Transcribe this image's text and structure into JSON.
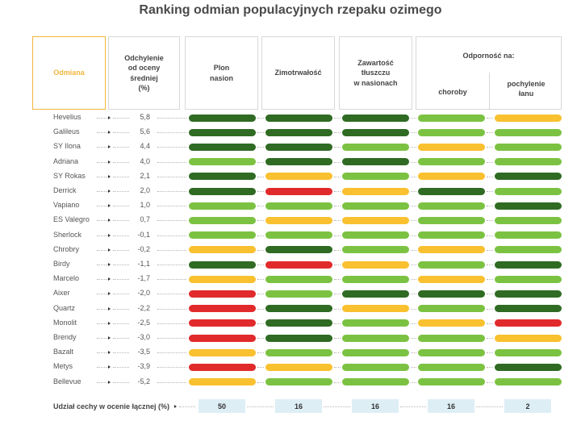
{
  "title": "Ranking odmian populacyjnych rzepaku ozimego",
  "headers": {
    "variety": "Odmiana",
    "deviation": "Odchylenie\nod oceny\nśredniej\n(%)",
    "yield": "Plon\nnasion",
    "frost": "Zimotrwałość",
    "fat": "Zawartość\ntłuszczu\nw nasionach",
    "resistance": "Odporność na:",
    "disease": "choroby",
    "lodging": "pochylenie\nłanu"
  },
  "colors": {
    "dark_green": "#2f6b23",
    "green": "#7cc242",
    "yellow": "#f9c02f",
    "red": "#e12a2b",
    "accent": "#f2b63c",
    "footer_box": "#deeef5"
  },
  "chart_data": {
    "type": "table",
    "title": "Ranking odmian populacyjnych rzepaku ozimego",
    "columns": [
      "Plon nasion",
      "Zimotrwałość",
      "Zawartość tłuszczu w nasionach",
      "choroby",
      "pochylenie łanu"
    ],
    "rows": [
      {
        "name": "Hevelius",
        "deviation": "5,8",
        "ratings": [
          "dark_green",
          "dark_green",
          "dark_green",
          "green",
          "yellow"
        ]
      },
      {
        "name": "Galileus",
        "deviation": "5,6",
        "ratings": [
          "dark_green",
          "dark_green",
          "dark_green",
          "green",
          "green"
        ]
      },
      {
        "name": "SY Ilona",
        "deviation": "4,4",
        "ratings": [
          "dark_green",
          "dark_green",
          "green",
          "yellow",
          "green"
        ]
      },
      {
        "name": "Adriana",
        "deviation": "4,0",
        "ratings": [
          "green",
          "dark_green",
          "dark_green",
          "green",
          "green"
        ]
      },
      {
        "name": "SY Rokas",
        "deviation": "2,1",
        "ratings": [
          "dark_green",
          "yellow",
          "green",
          "yellow",
          "dark_green"
        ]
      },
      {
        "name": "Derrick",
        "deviation": "2,0",
        "ratings": [
          "dark_green",
          "red",
          "yellow",
          "dark_green",
          "green"
        ]
      },
      {
        "name": "Vapiano",
        "deviation": "1,0",
        "ratings": [
          "green",
          "green",
          "green",
          "green",
          "dark_green"
        ]
      },
      {
        "name": "ES Valegro",
        "deviation": "0,7",
        "ratings": [
          "green",
          "yellow",
          "yellow",
          "green",
          "green"
        ]
      },
      {
        "name": "Sherlock",
        "deviation": "-0,1",
        "ratings": [
          "green",
          "green",
          "green",
          "green",
          "green"
        ]
      },
      {
        "name": "Chrobry",
        "deviation": "-0,2",
        "ratings": [
          "yellow",
          "dark_green",
          "green",
          "yellow",
          "green"
        ]
      },
      {
        "name": "Birdy",
        "deviation": "-1,1",
        "ratings": [
          "dark_green",
          "red",
          "yellow",
          "green",
          "dark_green"
        ]
      },
      {
        "name": "Marcelo",
        "deviation": "-1,7",
        "ratings": [
          "yellow",
          "green",
          "green",
          "yellow",
          "green"
        ]
      },
      {
        "name": "Aixer",
        "deviation": "-2,0",
        "ratings": [
          "red",
          "green",
          "dark_green",
          "dark_green",
          "dark_green"
        ]
      },
      {
        "name": "Quartz",
        "deviation": "-2,2",
        "ratings": [
          "red",
          "dark_green",
          "yellow",
          "green",
          "dark_green"
        ]
      },
      {
        "name": "Monolit",
        "deviation": "-2,5",
        "ratings": [
          "red",
          "dark_green",
          "green",
          "yellow",
          "red"
        ]
      },
      {
        "name": "Brendy",
        "deviation": "-3,0",
        "ratings": [
          "red",
          "dark_green",
          "green",
          "green",
          "yellow"
        ]
      },
      {
        "name": "Bazalt",
        "deviation": "-3,5",
        "ratings": [
          "yellow",
          "green",
          "green",
          "green",
          "green"
        ]
      },
      {
        "name": "Metys",
        "deviation": "-3,9",
        "ratings": [
          "red",
          "yellow",
          "green",
          "green",
          "dark_green"
        ]
      },
      {
        "name": "Bellevue",
        "deviation": "-5,2",
        "ratings": [
          "yellow",
          "green",
          "green",
          "green",
          "green"
        ]
      }
    ],
    "footer": {
      "label": "Udział cechy w ocenie łącznej (%)",
      "values": [
        "50",
        "16",
        "16",
        "16",
        "2"
      ]
    }
  }
}
